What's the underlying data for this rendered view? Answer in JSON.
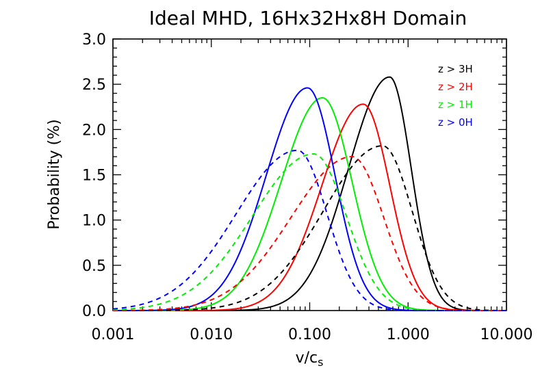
{
  "chart_data": {
    "type": "line",
    "title": "Ideal MHD, 16Hx32Hx8H Domain",
    "xlabel": "v/c",
    "xlabel_subscript": "s",
    "ylabel": "Probability (%)",
    "xscale": "log",
    "xlim": [
      0.001,
      10.0
    ],
    "ylim": [
      0.0,
      3.0
    ],
    "x_ticks": [
      0.001,
      0.01,
      0.1,
      1.0,
      10.0
    ],
    "x_tick_labels": [
      "0.001",
      "0.010",
      "0.100",
      "1.000",
      "10.000"
    ],
    "y_ticks": [
      0.0,
      0.5,
      1.0,
      1.5,
      2.0,
      2.5,
      3.0
    ],
    "y_tick_labels": [
      "0.0",
      "0.5",
      "1.0",
      "1.5",
      "2.0",
      "2.5",
      "3.0"
    ],
    "legend_position": "top-right",
    "grid": false,
    "legend": [
      {
        "label": "z > 3H",
        "color": "#000000"
      },
      {
        "label": "z > 2H",
        "color": "#ff0000"
      },
      {
        "label": "z > 1H",
        "color": "#00ee00"
      },
      {
        "label": "z > 0H",
        "color": "#0000ff"
      }
    ],
    "series": [
      {
        "name": "z > 3H",
        "color": "#000000",
        "style": "solid",
        "peak_x": 0.65,
        "peak_y": 2.58,
        "sigma_left": 0.42,
        "sigma_right": 0.22
      },
      {
        "name": "z > 2H",
        "color": "#ff0000",
        "style": "solid",
        "peak_x": 0.35,
        "peak_y": 2.28,
        "sigma_left": 0.42,
        "sigma_right": 0.27
      },
      {
        "name": "z > 1H",
        "color": "#00ee00",
        "style": "solid",
        "peak_x": 0.135,
        "peak_y": 2.35,
        "sigma_left": 0.42,
        "sigma_right": 0.3
      },
      {
        "name": "z > 0H",
        "color": "#0000ff",
        "style": "solid",
        "peak_x": 0.095,
        "peak_y": 2.46,
        "sigma_left": 0.42,
        "sigma_right": 0.28
      },
      {
        "name": "z > 3H",
        "color": "#000000",
        "style": "dashed",
        "peak_x": 0.55,
        "peak_y": 1.82,
        "sigma_left": 0.6,
        "sigma_right": 0.3
      },
      {
        "name": "z > 2H",
        "color": "#ff0000",
        "style": "dashed",
        "peak_x": 0.27,
        "peak_y": 1.7,
        "sigma_left": 0.62,
        "sigma_right": 0.32
      },
      {
        "name": "z > 1H",
        "color": "#00ee00",
        "style": "dashed",
        "peak_x": 0.11,
        "peak_y": 1.73,
        "sigma_left": 0.62,
        "sigma_right": 0.33
      },
      {
        "name": "z > 0H",
        "color": "#0000ff",
        "style": "dashed",
        "peak_x": 0.075,
        "peak_y": 1.77,
        "sigma_left": 0.62,
        "sigma_right": 0.3
      }
    ]
  }
}
